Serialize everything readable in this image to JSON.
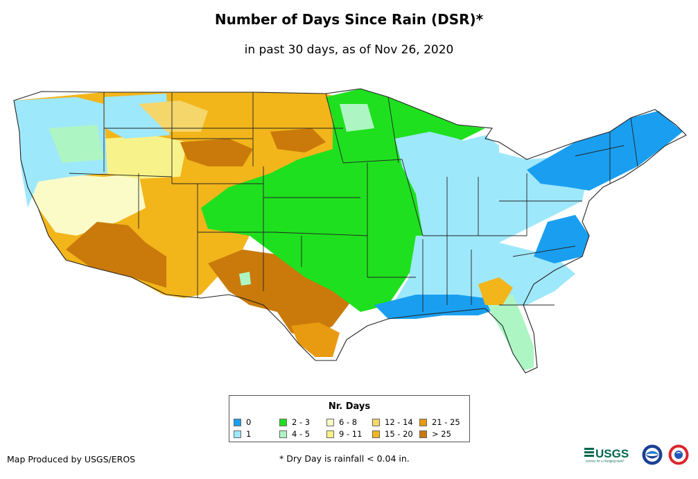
{
  "title": "Number of Days Since Rain (DSR)*",
  "subtitle": "in past 30 days, as of Nov 26, 2020",
  "legend": {
    "title": "Nr. Days",
    "items": [
      {
        "label": "0",
        "color": "#1a9ff0"
      },
      {
        "label": "1",
        "color": "#9ee8fb"
      },
      {
        "label": "2 - 3",
        "color": "#1fe01f"
      },
      {
        "label": "4 - 5",
        "color": "#aef5c4"
      },
      {
        "label": "6 - 8",
        "color": "#fbfbc8"
      },
      {
        "label": "9 - 11",
        "color": "#f8f28a"
      },
      {
        "label": "12 - 14",
        "color": "#f5d66b"
      },
      {
        "label": "15 - 20",
        "color": "#f2b51a"
      },
      {
        "label": "21 - 25",
        "color": "#e89a10"
      },
      {
        "label": "> 25",
        "color": "#c97a0a"
      }
    ]
  },
  "credit": "Map Produced by USGS/EROS",
  "footnote": "* Dry Day is rainfall < 0.04 in.",
  "logos": {
    "usgs": "USGS",
    "usgs_tagline": "science for a changing world",
    "noaa": "noaa-seal",
    "nws": "nws-seal"
  },
  "colors": {
    "state_border": "#222222"
  }
}
